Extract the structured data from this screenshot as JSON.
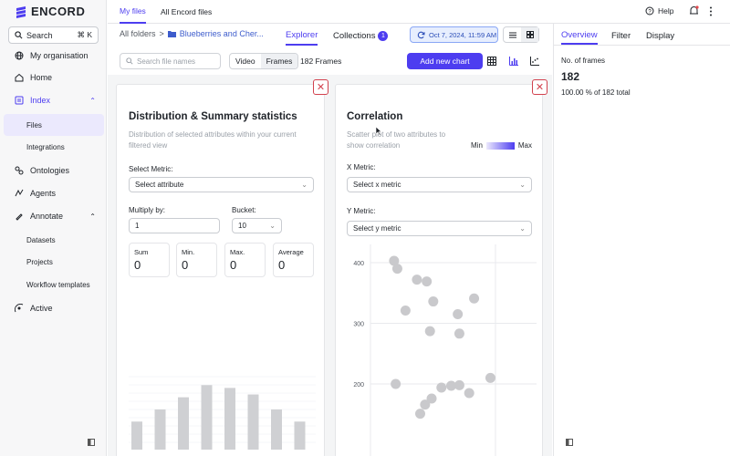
{
  "brand": {
    "name": "ENCORD"
  },
  "sidebar": {
    "search_label": "Search",
    "search_shortcut": "⌘ K",
    "items": [
      {
        "label": "My organisation"
      },
      {
        "label": "Home"
      },
      {
        "label": "Index"
      },
      {
        "label": "Files"
      },
      {
        "label": "Integrations"
      },
      {
        "label": "Ontologies"
      },
      {
        "label": "Agents"
      },
      {
        "label": "Annotate"
      },
      {
        "label": "Datasets"
      },
      {
        "label": "Projects"
      },
      {
        "label": "Workflow templates"
      },
      {
        "label": "Active"
      }
    ]
  },
  "topbar": {
    "tabs": [
      "My files",
      "All Encord files"
    ],
    "help": "Help"
  },
  "breadcrumb": {
    "root": "All folders",
    "sep": ">",
    "folder": "Blueberries and Cher..."
  },
  "view_tabs": {
    "explorer": "Explorer",
    "collections": "Collections",
    "collections_count": "1"
  },
  "date": "Oct 7, 2024, 11:59 AM",
  "toolbar": {
    "search_placeholder": "Search file names",
    "seg": [
      "Video",
      "Frames"
    ],
    "frames_count": "182 Frames",
    "add_chart": "Add new chart"
  },
  "dist_card": {
    "title": "Distribution & Summary statistics",
    "desc": "Distribution of selected attributes within your current filtered view",
    "metric_label": "Select Metric:",
    "metric_value": "Select attribute",
    "multiply_label": "Multiply by:",
    "multiply_value": "1",
    "bucket_label": "Bucket:",
    "bucket_value": "10",
    "stats": [
      {
        "label": "Sum",
        "value": "0"
      },
      {
        "label": "Min.",
        "value": "0"
      },
      {
        "label": "Max.",
        "value": "0"
      },
      {
        "label": "Average",
        "value": "0"
      }
    ],
    "bars": [
      30,
      43,
      56,
      69,
      66,
      59,
      43,
      30
    ]
  },
  "corr_card": {
    "title": "Correlation",
    "desc": "Scatter plot of two attributes to show correlation",
    "legend_min": "Min",
    "legend_max": "Max",
    "x_label": "X Metric:",
    "x_value": "Select x metric",
    "y_label": "Y Metric:",
    "y_value": "Select y metric"
  },
  "chart_data": {
    "type": "scatter",
    "title": "",
    "xlabel": "",
    "ylabel": "",
    "yticks": [
      200,
      300,
      400
    ],
    "ylim": [
      100,
      500
    ],
    "xlim": [
      0,
      10
    ],
    "points": [
      {
        "x": 1.5,
        "y": 403
      },
      {
        "x": 1.7,
        "y": 390
      },
      {
        "x": 2.9,
        "y": 372
      },
      {
        "x": 3.5,
        "y": 369
      },
      {
        "x": 3.9,
        "y": 336
      },
      {
        "x": 2.2,
        "y": 321
      },
      {
        "x": 5.4,
        "y": 315
      },
      {
        "x": 6.4,
        "y": 341
      },
      {
        "x": 3.7,
        "y": 287
      },
      {
        "x": 5.5,
        "y": 283
      },
      {
        "x": 1.6,
        "y": 200
      },
      {
        "x": 4.4,
        "y": 194
      },
      {
        "x": 5.0,
        "y": 197
      },
      {
        "x": 6.1,
        "y": 185
      },
      {
        "x": 3.8,
        "y": 176
      },
      {
        "x": 3.4,
        "y": 166
      },
      {
        "x": 5.5,
        "y": 198
      },
      {
        "x": 3.1,
        "y": 151
      },
      {
        "x": 7.4,
        "y": 210
      }
    ]
  },
  "rpanel": {
    "tabs": [
      "Overview",
      "Filter",
      "Display"
    ],
    "label": "No. of frames",
    "value": "182",
    "sub": "100.00 % of 182 total"
  }
}
